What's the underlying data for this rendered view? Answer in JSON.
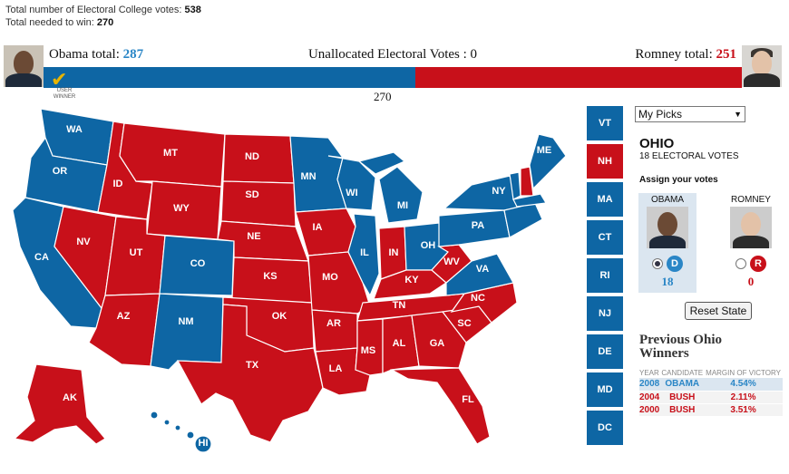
{
  "meta": {
    "total_label": "Total number of Electoral College votes:",
    "total_value": "538",
    "needed_label": "Total needed to win:",
    "needed_value": "270"
  },
  "topbar": {
    "obama_label": "Obama total:",
    "obama_total": "287",
    "romney_label": "Romney total:",
    "romney_total": "251",
    "unallocated": "Unallocated Electoral Votes : 0",
    "user_winner": "USER WINNER",
    "win_mark": "270",
    "obama_fraction": 0.533,
    "romney_fraction": 0.467,
    "blue": "#0e66a4",
    "red": "#c8101a"
  },
  "map_labels": {
    "WA": "WA",
    "OR": "OR",
    "CA": "CA",
    "NV": "NV",
    "ID": "ID",
    "MT": "MT",
    "WY": "WY",
    "UT": "UT",
    "AZ": "AZ",
    "CO": "CO",
    "NM": "NM",
    "ND": "ND",
    "SD": "SD",
    "NE": "NE",
    "KS": "KS",
    "OK": "OK",
    "TX": "TX",
    "MN": "MN",
    "IA": "IA",
    "MO": "MO",
    "AR": "AR",
    "LA": "LA",
    "WI": "WI",
    "IL": "IL",
    "MI": "MI",
    "IN": "IN",
    "OH": "OH",
    "KY": "KY",
    "TN": "TN",
    "MS": "MS",
    "AL": "AL",
    "GA": "GA",
    "FL": "FL",
    "SC": "SC",
    "NC": "NC",
    "VA": "VA",
    "WV": "WV",
    "PA": "PA",
    "NY": "NY",
    "ME": "ME",
    "AK": "AK",
    "HI": "HI"
  },
  "ne_states": [
    {
      "code": "VT",
      "party": "D"
    },
    {
      "code": "NH",
      "party": "R"
    },
    {
      "code": "MA",
      "party": "D"
    },
    {
      "code": "CT",
      "party": "D"
    },
    {
      "code": "RI",
      "party": "D"
    },
    {
      "code": "NJ",
      "party": "D"
    },
    {
      "code": "DE",
      "party": "D"
    },
    {
      "code": "MD",
      "party": "D"
    },
    {
      "code": "DC",
      "party": "D"
    }
  ],
  "panel": {
    "picks": "My Picks",
    "state": "OHIO",
    "ev": "18 ELECTORAL VOTES",
    "assign": "Assign your votes",
    "obama_name": "OBAMA",
    "romney_name": "ROMNEY",
    "obama_votes": "18",
    "romney_votes": "0",
    "d_letter": "D",
    "r_letter": "R",
    "reset": "Reset State",
    "prev_title": "Previous Ohio Winners",
    "hist_headers": {
      "year": "YEAR",
      "candidate": "CANDIDATE",
      "margin": "MARGIN OF VICTORY"
    },
    "history": [
      {
        "year": "2008",
        "candidate": "OBAMA",
        "margin": "4.54%"
      },
      {
        "year": "2004",
        "candidate": "BUSH",
        "margin": "2.11%"
      },
      {
        "year": "2000",
        "candidate": "BUSH",
        "margin": "3.51%"
      }
    ]
  }
}
